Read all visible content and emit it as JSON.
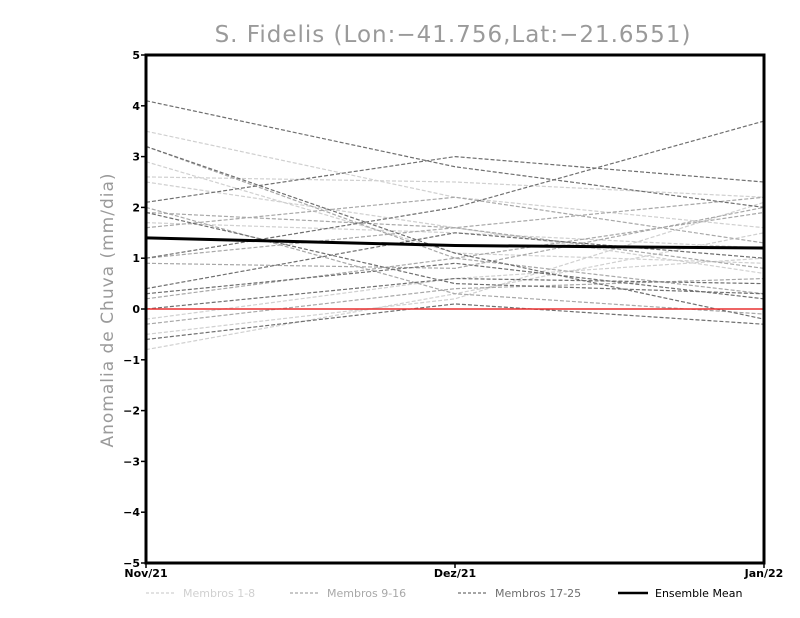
{
  "chart_data": {
    "type": "line",
    "title": "S. Fidelis (Lon:−41.756,Lat:−21.6551)",
    "xlabel": "",
    "ylabel": "Anomalia de Chuva (mm/dia)",
    "categories": [
      "Nov/21",
      "Dez/21",
      "Jan/22"
    ],
    "ylim": [
      -5,
      5
    ],
    "yticks": [
      "5",
      "4",
      "3",
      "2",
      "1",
      "0",
      "−1",
      "−2",
      "−3",
      "−4",
      "−5"
    ],
    "reference_line": {
      "value": 0,
      "color": "#e83030"
    },
    "legend": {
      "placement": "bottom",
      "entries": [
        {
          "name": "Membros 1-8",
          "color": "#d0d0d0",
          "style": "dashed"
        },
        {
          "name": "Membros 9-16",
          "color": "#a8a8a8",
          "style": "dashed"
        },
        {
          "name": "Membros 17-25",
          "color": "#6f6f6f",
          "style": "dashed"
        },
        {
          "name": "Ensemble Mean",
          "color": "#000000",
          "style": "solid"
        }
      ]
    },
    "groups": [
      {
        "name": "Membros 1-8",
        "color": "#d0d0d0",
        "series": [
          [
            3.5,
            2.2,
            1.6
          ],
          [
            2.6,
            2.5,
            2.2
          ],
          [
            2.5,
            1.6,
            0.7
          ],
          [
            1.7,
            1.5,
            1.2
          ],
          [
            -0.8,
            0.3,
            1.5
          ],
          [
            -0.5,
            0.2,
            2.1
          ],
          [
            2.9,
            1.1,
            0.9
          ],
          [
            -0.2,
            0.6,
            1.0
          ]
        ]
      },
      {
        "name": "Membros 9-16",
        "color": "#a8a8a8",
        "series": [
          [
            3.2,
            1.0,
            0.3
          ],
          [
            1.6,
            2.2,
            1.3
          ],
          [
            0.9,
            0.8,
            2.0
          ],
          [
            0.2,
            1.0,
            1.9
          ],
          [
            2.0,
            0.3,
            -0.1
          ],
          [
            1.0,
            1.6,
            0.8
          ],
          [
            -0.3,
            0.4,
            0.6
          ],
          [
            1.9,
            1.6,
            2.2
          ]
        ]
      },
      {
        "name": "Membros 17-25",
        "color": "#6f6f6f",
        "series": [
          [
            4.1,
            2.8,
            2.0
          ],
          [
            2.1,
            3.0,
            2.5
          ],
          [
            1.0,
            2.0,
            3.7
          ],
          [
            3.2,
            1.1,
            -0.2
          ],
          [
            0.4,
            1.5,
            1.0
          ],
          [
            1.9,
            0.5,
            0.3
          ],
          [
            0.3,
            0.9,
            0.2
          ],
          [
            -0.6,
            0.1,
            -0.3
          ],
          [
            0.0,
            0.6,
            0.5
          ]
        ]
      }
    ],
    "ensemble_mean": {
      "name": "Ensemble Mean",
      "color": "#000000",
      "values": [
        1.4,
        1.25,
        1.2
      ]
    }
  }
}
